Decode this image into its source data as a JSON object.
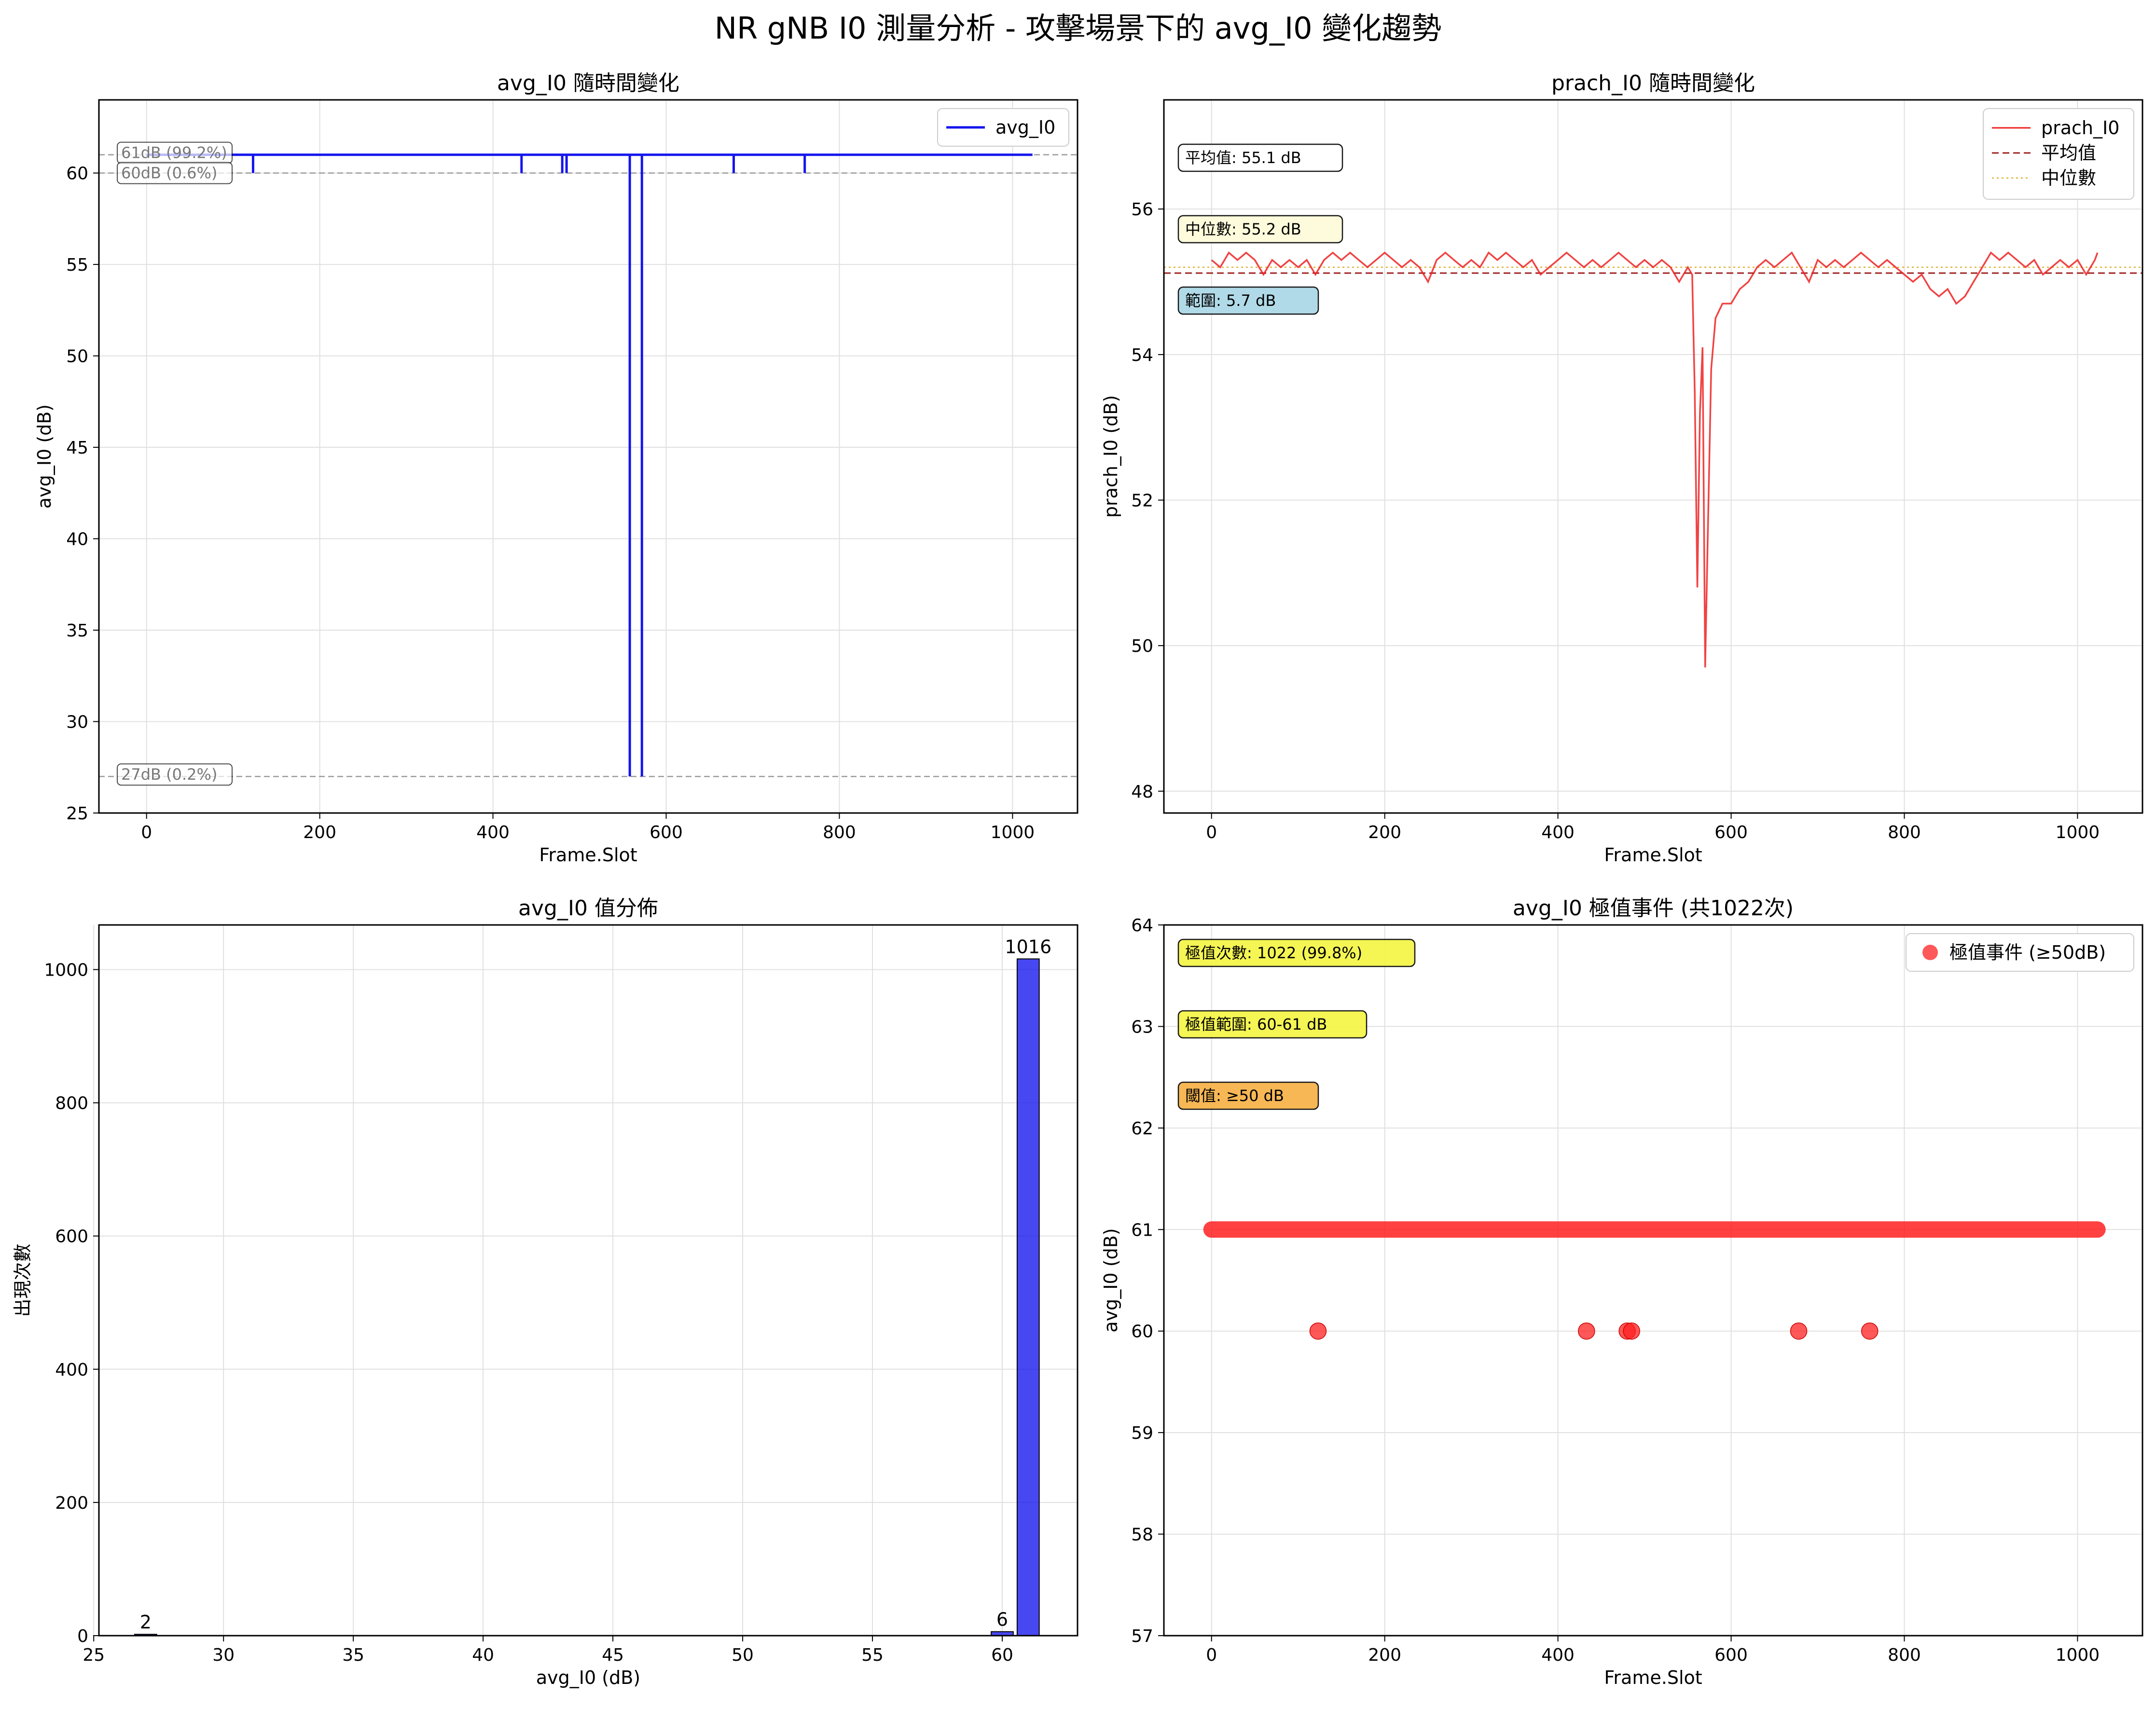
{
  "figure": {
    "title": "NR gNB I0 測量分析 - 攻擊場景下的 avg_I0 變化趨勢"
  },
  "colors": {
    "blue": "#1515ee",
    "red": "#ee2222",
    "grid": "#e0e0e0",
    "yellow_box": "#f5f542",
    "orange_box": "#f7b043",
    "cream_box": "#fdfbd8",
    "lightblue_box": "#a9d7e6"
  },
  "chart_data": [
    {
      "id": "p1",
      "type": "line",
      "title": "avg_I0 隨時間變化",
      "xlabel": "Frame.Slot",
      "ylabel": "avg_I0 (dB)",
      "xlim": [
        -55,
        1075
      ],
      "ylim": [
        25,
        64
      ],
      "xticks": [
        0,
        200,
        400,
        600,
        800,
        1000
      ],
      "yticks": [
        25,
        30,
        35,
        40,
        45,
        50,
        55,
        60
      ],
      "legend": {
        "position": "top-right",
        "entries": [
          "avg_I0"
        ]
      },
      "series": [
        {
          "name": "avg_I0",
          "baseline": 61,
          "x_range": [
            0,
            1023
          ],
          "dips": [
            {
              "x": 123,
              "y": 60
            },
            {
              "x": 433,
              "y": 60
            },
            {
              "x": 480,
              "y": 60
            },
            {
              "x": 485,
              "y": 60
            },
            {
              "x": 558,
              "y": 27
            },
            {
              "x": 572,
              "y": 27
            },
            {
              "x": 678,
              "y": 60
            },
            {
              "x": 760,
              "y": 60
            }
          ]
        }
      ],
      "reference_lines": [
        {
          "y": 61,
          "label": "61dB (99.2%)"
        },
        {
          "y": 60,
          "label": "60dB (0.6%)"
        },
        {
          "y": 27,
          "label": "27dB (0.2%)"
        }
      ],
      "grid": true
    },
    {
      "id": "p2",
      "type": "line",
      "title": "prach_I0 隨時間變化",
      "xlabel": "Frame.Slot",
      "ylabel": "prach_I0 (dB)",
      "xlim": [
        -55,
        1075
      ],
      "ylim": [
        47.7,
        57.5
      ],
      "xticks": [
        0,
        200,
        400,
        600,
        800,
        1000
      ],
      "yticks": [
        48,
        50,
        52,
        54,
        56
      ],
      "legend": {
        "position": "top-right",
        "entries": [
          "prach_I0",
          "平均值",
          "中位數"
        ]
      },
      "mean": 55.12,
      "median": 55.2,
      "series": [
        {
          "name": "prach_I0",
          "points": [
            [
              0,
              55.3
            ],
            [
              10,
              55.2
            ],
            [
              20,
              55.4
            ],
            [
              30,
              55.3
            ],
            [
              40,
              55.4
            ],
            [
              50,
              55.3
            ],
            [
              60,
              55.1
            ],
            [
              70,
              55.3
            ],
            [
              80,
              55.2
            ],
            [
              90,
              55.3
            ],
            [
              100,
              55.2
            ],
            [
              110,
              55.3
            ],
            [
              120,
              55.1
            ],
            [
              130,
              55.3
            ],
            [
              140,
              55.4
            ],
            [
              150,
              55.3
            ],
            [
              160,
              55.4
            ],
            [
              170,
              55.3
            ],
            [
              180,
              55.2
            ],
            [
              190,
              55.3
            ],
            [
              200,
              55.4
            ],
            [
              210,
              55.3
            ],
            [
              220,
              55.2
            ],
            [
              230,
              55.3
            ],
            [
              240,
              55.2
            ],
            [
              250,
              55.0
            ],
            [
              260,
              55.3
            ],
            [
              270,
              55.4
            ],
            [
              280,
              55.3
            ],
            [
              290,
              55.2
            ],
            [
              300,
              55.3
            ],
            [
              310,
              55.2
            ],
            [
              320,
              55.4
            ],
            [
              330,
              55.3
            ],
            [
              340,
              55.4
            ],
            [
              350,
              55.3
            ],
            [
              360,
              55.2
            ],
            [
              370,
              55.3
            ],
            [
              380,
              55.1
            ],
            [
              390,
              55.2
            ],
            [
              400,
              55.3
            ],
            [
              410,
              55.4
            ],
            [
              420,
              55.3
            ],
            [
              430,
              55.2
            ],
            [
              440,
              55.3
            ],
            [
              450,
              55.2
            ],
            [
              460,
              55.3
            ],
            [
              470,
              55.4
            ],
            [
              480,
              55.3
            ],
            [
              490,
              55.2
            ],
            [
              500,
              55.3
            ],
            [
              510,
              55.2
            ],
            [
              520,
              55.3
            ],
            [
              530,
              55.2
            ],
            [
              540,
              55.0
            ],
            [
              550,
              55.2
            ],
            [
              555,
              55.1
            ],
            [
              558,
              53.5
            ],
            [
              561,
              50.8
            ],
            [
              564,
              53.2
            ],
            [
              567,
              54.1
            ],
            [
              570,
              49.7
            ],
            [
              573,
              51.5
            ],
            [
              577,
              53.8
            ],
            [
              582,
              54.5
            ],
            [
              590,
              54.7
            ],
            [
              600,
              54.7
            ],
            [
              610,
              54.9
            ],
            [
              620,
              55.0
            ],
            [
              630,
              55.2
            ],
            [
              640,
              55.3
            ],
            [
              650,
              55.2
            ],
            [
              660,
              55.3
            ],
            [
              670,
              55.4
            ],
            [
              680,
              55.2
            ],
            [
              690,
              55.0
            ],
            [
              700,
              55.3
            ],
            [
              710,
              55.2
            ],
            [
              720,
              55.3
            ],
            [
              730,
              55.2
            ],
            [
              740,
              55.3
            ],
            [
              750,
              55.4
            ],
            [
              760,
              55.3
            ],
            [
              770,
              55.2
            ],
            [
              780,
              55.3
            ],
            [
              790,
              55.2
            ],
            [
              800,
              55.1
            ],
            [
              810,
              55.0
            ],
            [
              820,
              55.1
            ],
            [
              830,
              54.9
            ],
            [
              840,
              54.8
            ],
            [
              850,
              54.9
            ],
            [
              860,
              54.7
            ],
            [
              870,
              54.8
            ],
            [
              880,
              55.0
            ],
            [
              890,
              55.2
            ],
            [
              900,
              55.4
            ],
            [
              910,
              55.3
            ],
            [
              920,
              55.4
            ],
            [
              930,
              55.3
            ],
            [
              940,
              55.2
            ],
            [
              950,
              55.3
            ],
            [
              960,
              55.1
            ],
            [
              970,
              55.2
            ],
            [
              980,
              55.3
            ],
            [
              990,
              55.2
            ],
            [
              1000,
              55.3
            ],
            [
              1010,
              55.1
            ],
            [
              1020,
              55.3
            ],
            [
              1023,
              55.4
            ]
          ]
        }
      ],
      "annotations": [
        {
          "text": "平均值: 55.1 dB",
          "style": "white"
        },
        {
          "text": "中位數: 55.2 dB",
          "style": "cream"
        },
        {
          "text": "範圍: 5.7 dB",
          "style": "lightblue"
        }
      ],
      "grid": true
    },
    {
      "id": "p3",
      "type": "bar",
      "title": "avg_I0 值分佈",
      "xlabel": "avg_I0 (dB)",
      "ylabel": "出現次數",
      "xlim": [
        25.2,
        62.9
      ],
      "ylim": [
        0,
        1067
      ],
      "xticks": [
        25,
        30,
        35,
        40,
        45,
        50,
        55,
        60
      ],
      "yticks": [
        0,
        200,
        400,
        600,
        800,
        1000
      ],
      "bin_width": 0.85,
      "bars": [
        {
          "x": 27,
          "value": 2,
          "label": "2"
        },
        {
          "x": 60,
          "value": 6,
          "label": "6"
        },
        {
          "x": 61,
          "value": 1016,
          "label": "1016"
        }
      ],
      "grid": true
    },
    {
      "id": "p4",
      "type": "scatter",
      "title": "avg_I0 極值事件 (共1022次)",
      "xlabel": "Frame.Slot",
      "ylabel": "avg_I0 (dB)",
      "xlim": [
        -55,
        1075
      ],
      "ylim": [
        57,
        64
      ],
      "xticks": [
        0,
        200,
        400,
        600,
        800,
        1000
      ],
      "yticks": [
        57,
        58,
        59,
        60,
        61,
        62,
        63,
        64
      ],
      "legend": {
        "position": "top-right",
        "entries": [
          "極值事件 (≥50dB)"
        ]
      },
      "series": [
        {
          "name": "極值事件 (≥50dB)",
          "dense_range": {
            "x_from": 0,
            "x_to": 1023,
            "y": 61
          },
          "points": [
            [
              123,
              60
            ],
            [
              433,
              60
            ],
            [
              480,
              60
            ],
            [
              485,
              60
            ],
            [
              678,
              60
            ],
            [
              760,
              60
            ]
          ]
        }
      ],
      "annotations": [
        {
          "text": "極值次數: 1022 (99.8%)",
          "style": "yellow"
        },
        {
          "text": "極值範圍: 60-61 dB",
          "style": "yellow"
        },
        {
          "text": "閾值: ≥50 dB",
          "style": "orange"
        }
      ],
      "grid": true
    }
  ]
}
